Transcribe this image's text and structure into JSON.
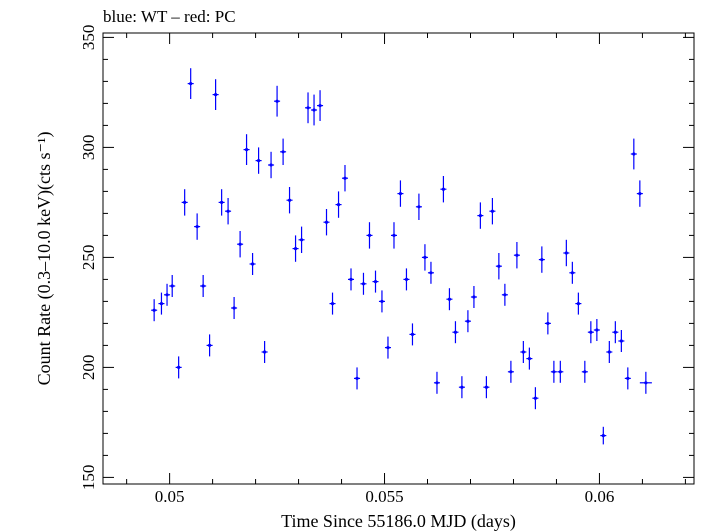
{
  "chart_data": {
    "type": "scatter",
    "title": "blue: WT – red: PC",
    "xlabel": "Time Since 55186.0 MJD (days)",
    "ylabel": "Count Rate (0.3–10.0 keV)(cts s⁻¹)",
    "xlim": [
      0.04845,
      0.0622
    ],
    "ylim": [
      147,
      352
    ],
    "xticks": [
      0.05,
      0.055,
      0.06
    ],
    "xtick_labels": [
      "0.05",
      "0.055",
      "0.06"
    ],
    "yticks": [
      150,
      200,
      250,
      300,
      350
    ],
    "ytick_labels": [
      "150",
      "200",
      "250",
      "300",
      "350"
    ],
    "grid": false,
    "series": [
      {
        "color": "#0000ff",
        "x": [
          0.04964,
          0.04981,
          0.04994,
          0.05006,
          0.05021,
          0.05035,
          0.05049,
          0.05064,
          0.05078,
          0.05093,
          0.05107,
          0.05121,
          0.05136,
          0.0515,
          0.05164,
          0.05179,
          0.05193,
          0.05207,
          0.05221,
          0.05236,
          0.0525,
          0.05264,
          0.05279,
          0.05293,
          0.05307,
          0.05322,
          0.05336,
          0.0535,
          0.05365,
          0.05379,
          0.05393,
          0.05408,
          0.05422,
          0.05436,
          0.05451,
          0.05465,
          0.05479,
          0.05494,
          0.05508,
          0.05522,
          0.05537,
          0.05551,
          0.05565,
          0.0558,
          0.05594,
          0.05608,
          0.05622,
          0.05637,
          0.05651,
          0.05665,
          0.0568,
          0.05694,
          0.05708,
          0.05723,
          0.05737,
          0.05751,
          0.05766,
          0.0578,
          0.05794,
          0.05808,
          0.05823,
          0.05837,
          0.05851,
          0.05866,
          0.0588,
          0.05894,
          0.05909,
          0.05923,
          0.05937,
          0.05951,
          0.05966,
          0.0598,
          0.05994,
          0.06009,
          0.06023,
          0.06037,
          0.06051,
          0.06066,
          0.0608,
          0.06094,
          0.06108
        ],
        "y": [
          226,
          229,
          233,
          237,
          200,
          275,
          329,
          264,
          237,
          210,
          324,
          275,
          271,
          227,
          256,
          299,
          247,
          294,
          207,
          292,
          321,
          298,
          276,
          254,
          258,
          318,
          317,
          319,
          266,
          229,
          274,
          286,
          240,
          195,
          238,
          260,
          239,
          230,
          209,
          260,
          279,
          240,
          215,
          273,
          250,
          243,
          193,
          281,
          231,
          216,
          191,
          221,
          232,
          269,
          191,
          271,
          246,
          233,
          198,
          251,
          207,
          204,
          186,
          249,
          220,
          198,
          198,
          252,
          243,
          229,
          198,
          216,
          217,
          169,
          207,
          216,
          212,
          195,
          297,
          279,
          193
        ],
        "yerr": [
          5,
          5,
          5,
          5,
          5,
          6,
          7,
          6,
          5,
          5,
          7,
          6,
          6,
          5,
          6,
          7,
          5,
          6,
          5,
          6,
          7,
          6,
          6,
          6,
          6,
          7,
          7,
          7,
          6,
          5,
          6,
          6,
          5,
          5,
          5,
          6,
          5,
          5,
          5,
          6,
          6,
          5,
          5,
          6,
          6,
          5,
          5,
          6,
          5,
          5,
          5,
          5,
          5,
          6,
          5,
          6,
          6,
          5,
          5,
          6,
          5,
          5,
          5,
          6,
          5,
          5,
          5,
          6,
          5,
          5,
          5,
          5,
          5,
          4,
          5,
          5,
          5,
          5,
          7,
          6,
          5
        ],
        "xerr": [
          7e-05,
          7e-05,
          7e-05,
          7e-05,
          7e-05,
          7e-05,
          7e-05,
          7e-05,
          7e-05,
          7e-05,
          7e-05,
          7e-05,
          7e-05,
          7e-05,
          7e-05,
          7e-05,
          7e-05,
          7e-05,
          7e-05,
          7e-05,
          7e-05,
          7e-05,
          7e-05,
          7e-05,
          7e-05,
          7e-05,
          7e-05,
          7e-05,
          7e-05,
          7e-05,
          7e-05,
          7e-05,
          7e-05,
          7e-05,
          7e-05,
          7e-05,
          7e-05,
          7e-05,
          7e-05,
          7e-05,
          7e-05,
          7e-05,
          7e-05,
          7e-05,
          7e-05,
          7e-05,
          7e-05,
          7e-05,
          7e-05,
          7e-05,
          7e-05,
          7e-05,
          7e-05,
          7e-05,
          7e-05,
          7e-05,
          7e-05,
          7e-05,
          7e-05,
          7e-05,
          7e-05,
          7e-05,
          7e-05,
          7e-05,
          7e-05,
          7e-05,
          7e-05,
          7e-05,
          7e-05,
          7e-05,
          7e-05,
          7e-05,
          7e-05,
          7e-05,
          7e-05,
          7e-05,
          7e-05,
          7e-05,
          7e-05,
          7e-05,
          0.00014
        ]
      }
    ]
  }
}
